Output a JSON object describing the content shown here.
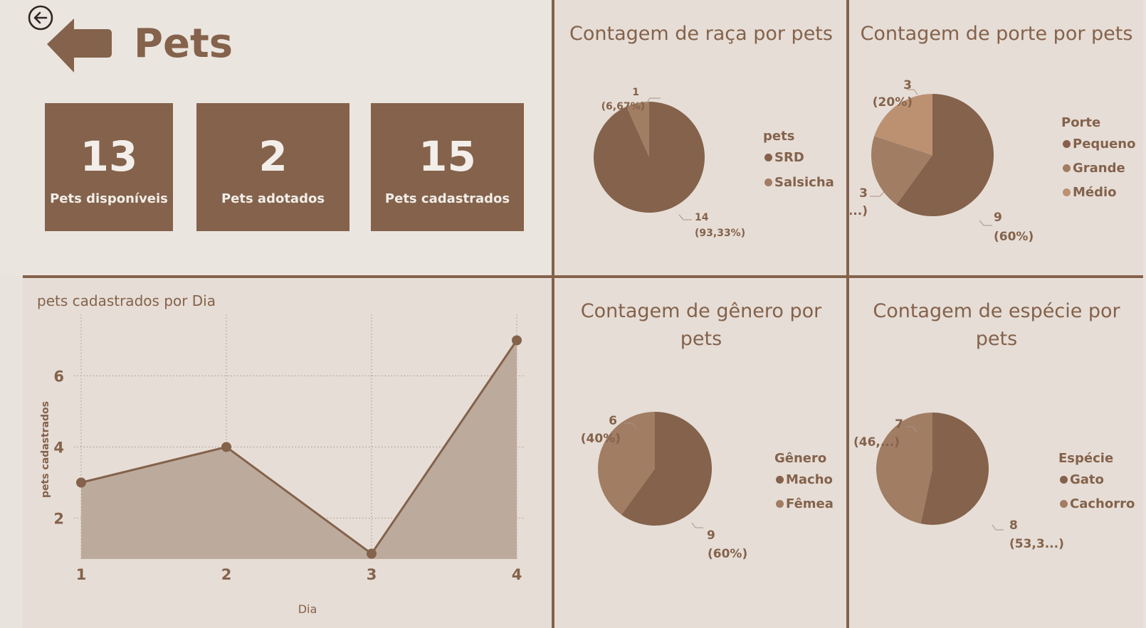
{
  "header": {
    "title": "Pets",
    "back_icon": "back-circle-arrow-icon",
    "arrow_icon": "big-left-arrow-icon"
  },
  "cards": [
    {
      "value": "13",
      "label": "Pets disponíveis"
    },
    {
      "value": "2",
      "label": "Pets adotados"
    },
    {
      "value": "15",
      "label": "Pets cadastrados"
    }
  ],
  "colors": {
    "dark": "#84624b",
    "mid": "#a17d64",
    "light": "#bc9172",
    "bg": "#e9e3dd",
    "area": "#bcab9d"
  },
  "pies": {
    "raca": {
      "title": "Contagem de raça por pets",
      "legend_title": "pets",
      "legend": [
        "SRD",
        "Salsicha"
      ],
      "labels": [
        {
          "l1": "14",
          "l2": "(93,33%)"
        },
        {
          "l1": "1",
          "l2": "(6,67%)"
        }
      ]
    },
    "porte": {
      "title": "Contagem de porte por pets",
      "legend_title": "Porte",
      "legend": [
        "Pequeno",
        "Grande",
        "Médio"
      ],
      "labels": [
        {
          "l1": "9",
          "l2": "(60%)"
        },
        {
          "l1": "3",
          "l2": "(2...)"
        },
        {
          "l1": "3",
          "l2": "(20%)"
        }
      ]
    },
    "genero": {
      "title_l1": "Contagem de gênero por",
      "title_l2": "pets",
      "legend_title": "Gênero",
      "legend": [
        "Macho",
        "Fêmea"
      ],
      "labels": [
        {
          "l1": "9",
          "l2": "(60%)"
        },
        {
          "l1": "6",
          "l2": "(40%)"
        }
      ]
    },
    "especie": {
      "title_l1": "Contagem de espécie por",
      "title_l2": "pets",
      "legend_title": "Espécie",
      "legend": [
        "Gato",
        "Cachorro"
      ],
      "labels": [
        {
          "l1": "8",
          "l2": "(53,3...)"
        },
        {
          "l1": "7",
          "l2": "(46,...)"
        }
      ]
    }
  },
  "chart_data": [
    {
      "type": "pie",
      "title": "Contagem de raça por pets",
      "legend_title": "pets",
      "categories": [
        "SRD",
        "Salsicha"
      ],
      "values": [
        14,
        1
      ],
      "percents": [
        "93,33%",
        "6,67%"
      ]
    },
    {
      "type": "pie",
      "title": "Contagem de porte por pets",
      "legend_title": "Porte",
      "categories": [
        "Pequeno",
        "Grande",
        "Médio"
      ],
      "values": [
        9,
        3,
        3
      ],
      "percents": [
        "60%",
        "20%",
        "20%"
      ]
    },
    {
      "type": "pie",
      "title": "Contagem de gênero por pets",
      "legend_title": "Gênero",
      "categories": [
        "Macho",
        "Fêmea"
      ],
      "values": [
        9,
        6
      ],
      "percents": [
        "60%",
        "40%"
      ]
    },
    {
      "type": "pie",
      "title": "Contagem de espécie por pets",
      "legend_title": "Espécie",
      "categories": [
        "Gato",
        "Cachorro"
      ],
      "values": [
        8,
        7
      ],
      "percents": [
        "53,33%",
        "46,67%"
      ]
    },
    {
      "type": "area",
      "title": "pets cadastrados por Dia",
      "xlabel": "Dia",
      "ylabel": "pets cadastrados",
      "x": [
        1,
        2,
        3,
        4
      ],
      "y": [
        3,
        4,
        1,
        7
      ],
      "xticks": [
        "1",
        "2",
        "3",
        "4"
      ],
      "yticks": [
        "2",
        "4",
        "6"
      ],
      "ylim": [
        0.85,
        7.55
      ],
      "grid": true
    }
  ]
}
